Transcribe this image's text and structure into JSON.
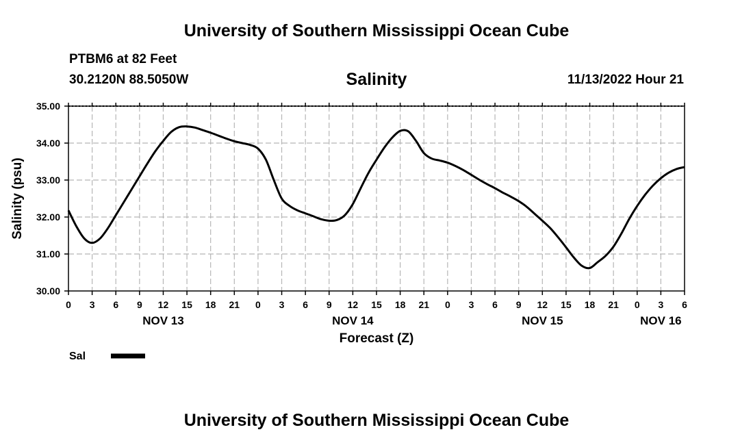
{
  "header": {
    "title": "University of Southern Mississippi Ocean Cube",
    "station": "PTBM6 at 82 Feet",
    "coordinates": "30.2120N  88.5050W",
    "datetime": "11/13/2022 Hour 21"
  },
  "footer": {
    "title": "University of Southern Mississippi Ocean Cube"
  },
  "chart_data": {
    "type": "line",
    "title": "Salinity",
    "xlabel": "Forecast (Z)",
    "ylabel": "Salinity (psu)",
    "ylim": [
      30,
      35
    ],
    "xlim": [
      0,
      78
    ],
    "x_unit": "hours since Nov 13 00Z",
    "y_ticks": [
      "30.00",
      "31.00",
      "32.00",
      "33.00",
      "34.00",
      "35.00"
    ],
    "x_ticks": [
      "0",
      "3",
      "6",
      "9",
      "12",
      "15",
      "18",
      "21",
      "0",
      "3",
      "6",
      "9",
      "12",
      "15",
      "18",
      "21",
      "0",
      "3",
      "6",
      "9",
      "12",
      "15",
      "18",
      "21",
      "0",
      "3",
      "6"
    ],
    "day_labels": [
      {
        "label": "NOV 13",
        "hour": 12
      },
      {
        "label": "NOV 14",
        "hour": 36
      },
      {
        "label": "NOV 15",
        "hour": 60
      },
      {
        "label": "NOV 16",
        "hour": 75
      }
    ],
    "grid": true,
    "legend": [
      {
        "name": "Sal",
        "color": "#000000"
      }
    ],
    "series": [
      {
        "name": "Sal",
        "x": [
          0,
          1,
          2,
          3,
          4,
          5,
          6,
          7,
          8,
          9,
          10,
          11,
          12,
          13,
          14,
          15,
          16,
          17,
          18,
          19,
          20,
          21,
          22,
          23,
          24,
          25,
          26,
          27,
          28,
          29,
          30,
          31,
          32,
          33,
          34,
          35,
          36,
          37,
          38,
          39,
          40,
          41,
          42,
          43,
          44,
          45,
          46,
          47,
          48,
          49,
          50,
          51,
          52,
          53,
          54,
          55,
          56,
          57,
          58,
          59,
          60,
          61,
          62,
          63,
          64,
          65,
          66,
          67,
          68,
          69,
          70,
          71,
          72,
          73,
          74,
          75,
          76,
          77,
          78
        ],
        "values": [
          32.18,
          31.75,
          31.42,
          31.3,
          31.42,
          31.7,
          32.05,
          32.4,
          32.75,
          33.1,
          33.45,
          33.78,
          34.06,
          34.3,
          34.43,
          34.45,
          34.42,
          34.35,
          34.28,
          34.2,
          34.12,
          34.05,
          34,
          33.95,
          33.85,
          33.55,
          33.0,
          32.5,
          32.3,
          32.18,
          32.1,
          32.02,
          31.94,
          31.9,
          31.92,
          32.05,
          32.35,
          32.78,
          33.2,
          33.55,
          33.88,
          34.15,
          34.33,
          34.32,
          34.06,
          33.73,
          33.58,
          33.53,
          33.47,
          33.38,
          33.27,
          33.14,
          33.01,
          32.89,
          32.78,
          32.66,
          32.55,
          32.43,
          32.28,
          32.09,
          31.9,
          31.7,
          31.45,
          31.18,
          30.9,
          30.68,
          30.62,
          30.78,
          30.95,
          31.2,
          31.55,
          31.95,
          32.3,
          32.6,
          32.85,
          33.05,
          33.2,
          33.3,
          33.35
        ]
      }
    ]
  }
}
